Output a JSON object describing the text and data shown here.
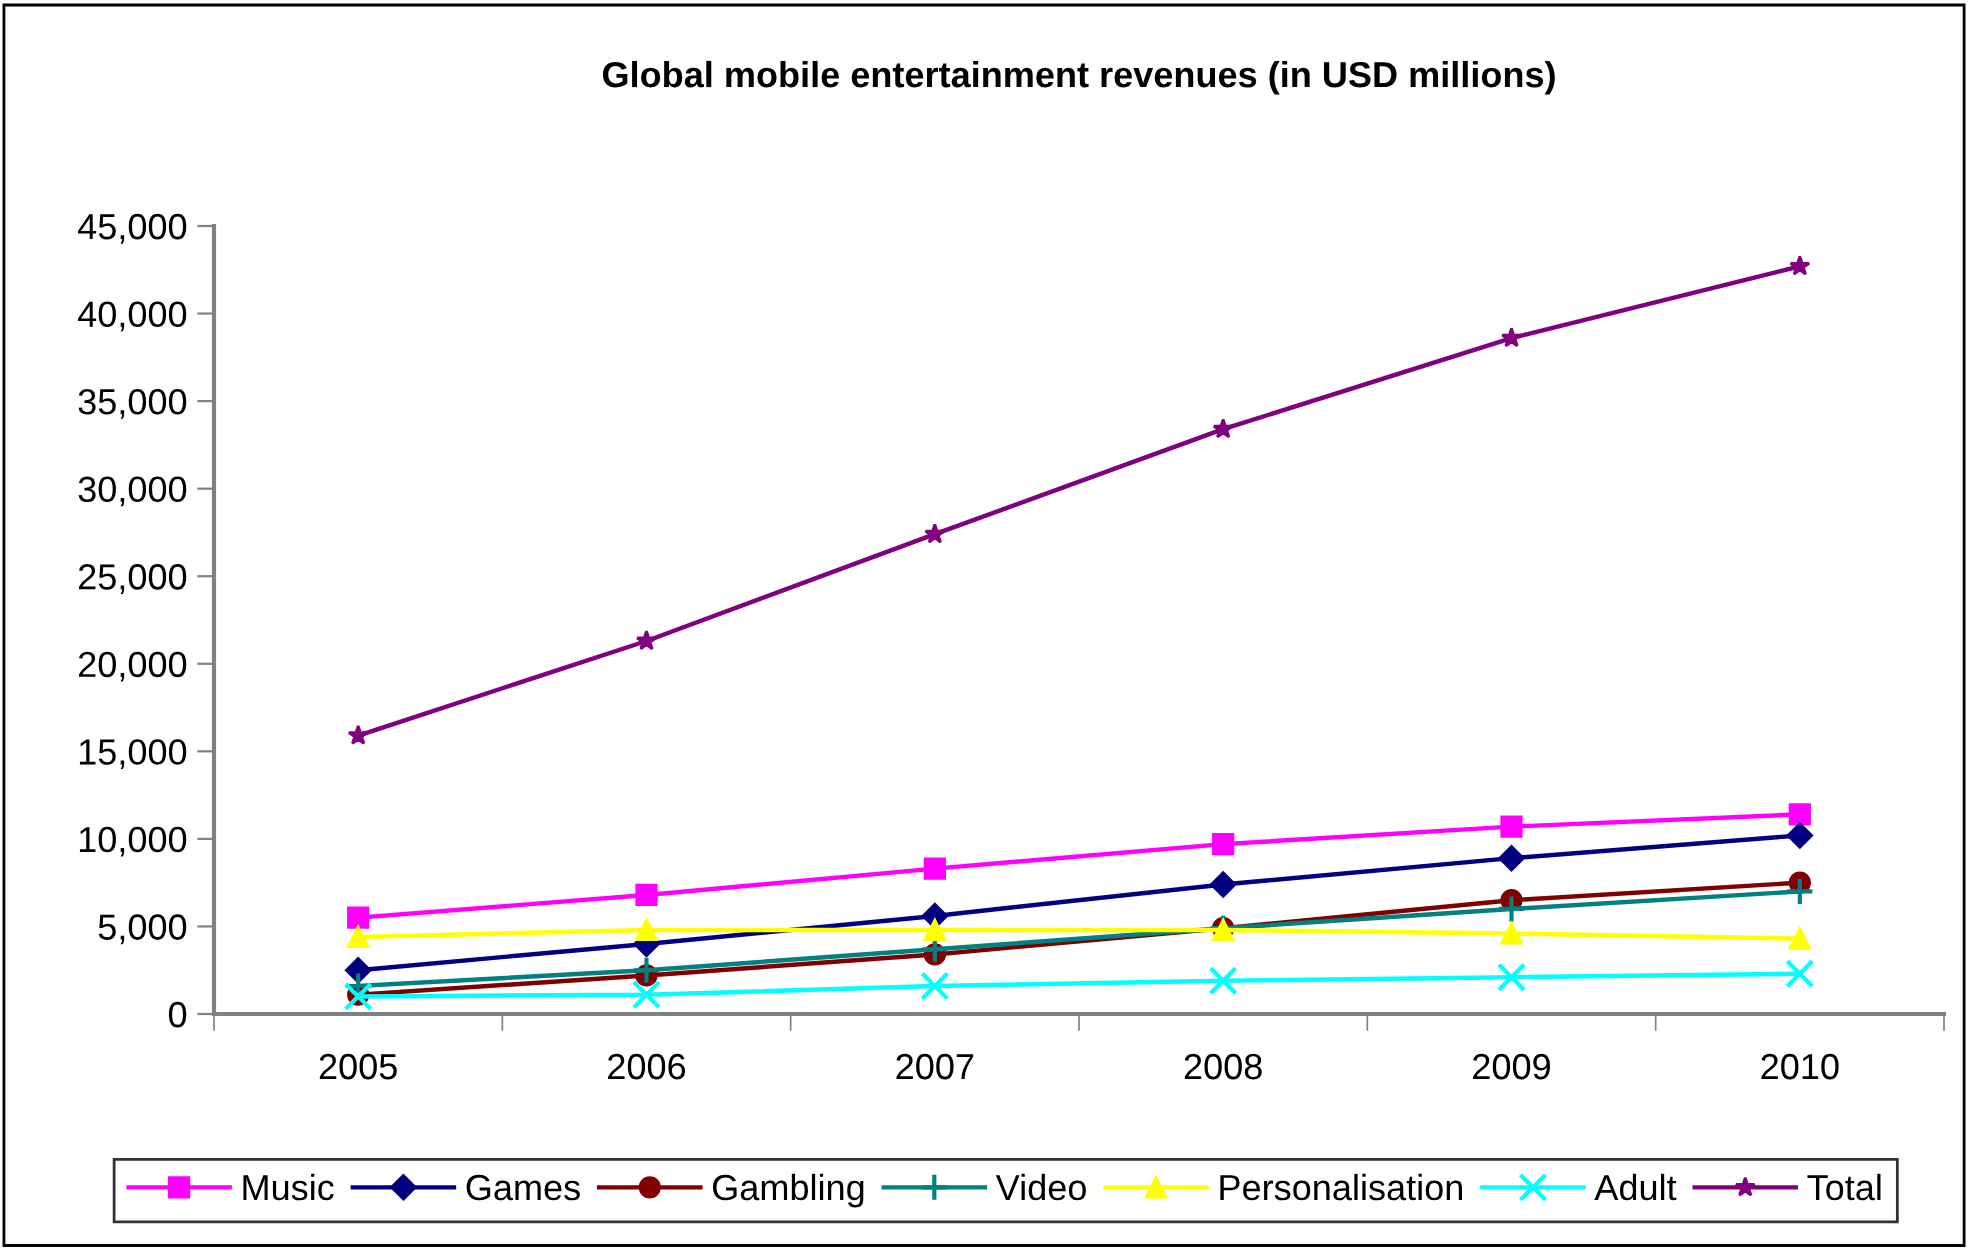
{
  "chart_data": {
    "type": "line",
    "title": "Global mobile entertainment revenues (in USD millions)",
    "categories": [
      "2005",
      "2006",
      "2007",
      "2008",
      "2009",
      "2010"
    ],
    "ylim": [
      0,
      45000
    ],
    "yticks": [
      {
        "value": 0,
        "label": "0"
      },
      {
        "value": 5000,
        "label": "5,000"
      },
      {
        "value": 10000,
        "label": "10,000"
      },
      {
        "value": 15000,
        "label": "15,000"
      },
      {
        "value": 20000,
        "label": "20,000"
      },
      {
        "value": 25000,
        "label": "25,000"
      },
      {
        "value": 30000,
        "label": "30,000"
      },
      {
        "value": 35000,
        "label": "35,000"
      },
      {
        "value": 40000,
        "label": "40,000"
      },
      {
        "value": 45000,
        "label": "45,000"
      }
    ],
    "grid": false,
    "legend": "bottom",
    "series": [
      {
        "name": "Music",
        "color": "#ff00ff",
        "marker": "square",
        "values": [
          5500,
          6800,
          8300,
          9700,
          10700,
          11400
        ]
      },
      {
        "name": "Games",
        "color": "#000080",
        "marker": "diamond",
        "values": [
          2500,
          4000,
          5600,
          7400,
          8900,
          10200
        ]
      },
      {
        "name": "Gambling",
        "color": "#800000",
        "marker": "circle",
        "values": [
          1100,
          2200,
          3400,
          4900,
          6500,
          7500
        ]
      },
      {
        "name": "Video",
        "color": "#008080",
        "marker": "cross",
        "values": [
          1600,
          2500,
          3700,
          4900,
          6000,
          7000
        ]
      },
      {
        "name": "Personalisation",
        "color": "#ffff00",
        "marker": "triangle",
        "values": [
          4400,
          4800,
          4800,
          4800,
          4600,
          4300
        ]
      },
      {
        "name": "Adult",
        "color": "#00ffff",
        "marker": "x",
        "values": [
          1000,
          1100,
          1600,
          1900,
          2100,
          2300
        ]
      },
      {
        "name": "Total",
        "color": "#800080",
        "marker": "star",
        "values": [
          15900,
          21300,
          27400,
          33400,
          38600,
          42700
        ]
      }
    ]
  }
}
